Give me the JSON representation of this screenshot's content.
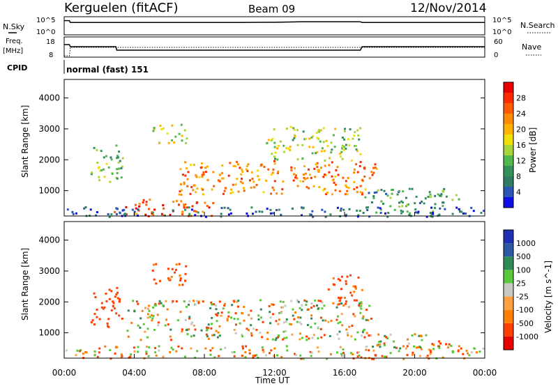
{
  "header": {
    "station": "Kerguelen (fitACF)",
    "beam": "Beam 09",
    "date": "12/Nov/2014"
  },
  "noise_panel": {
    "left_label": "N.Sky",
    "right_label": "N.Search",
    "left_ticks": [
      "10^5",
      "10^0"
    ],
    "right_ticks": [
      "10^5",
      "10^0"
    ]
  },
  "freq_panel": {
    "left_label_1": "Freq.",
    "left_label_2": "[MHz]",
    "right_label": "Nave",
    "left_ticks": [
      "18",
      "8"
    ],
    "right_ticks": [
      "60",
      "0"
    ]
  },
  "cpid_panel": {
    "label": "CPID",
    "text": "normal (fast) 151"
  },
  "axes": {
    "ylabel": "Slant Range [km]",
    "xlabel": "Time UT",
    "y_ticks": [
      "1000",
      "2000",
      "3000",
      "4000"
    ],
    "x_ticks": [
      "00:00",
      "04:00",
      "08:00",
      "12:00",
      "16:00",
      "20:00",
      "00:00"
    ]
  },
  "colors": {
    "power_scale": [
      "#1010e6",
      "#2c55b4",
      "#2f7d64",
      "#34915a",
      "#51b84c",
      "#a8d63a",
      "#f0e00a",
      "#ffb300",
      "#ff8c00",
      "#ff5a00",
      "#ff2a00",
      "#e60000"
    ],
    "velocity_scale": [
      "#e60000",
      "#ff4000",
      "#ff8000",
      "#ffa040",
      "#c8c8c0",
      "#5ac83a",
      "#2e8b57",
      "#2c5aa0",
      "#2030b4"
    ]
  },
  "chart_data": [
    {
      "type": "line",
      "title": "",
      "series": [
        {
          "name": "N.Sky",
          "x": [
            0.0,
            0.3,
            0.35,
            10.0,
            12.0,
            13.5,
            16.9,
            17.0,
            24.0
          ],
          "y": [
            4.6,
            4.6,
            3.95,
            3.95,
            4.0,
            4.2,
            4.2,
            3.95,
            3.95
          ]
        }
      ]
    },
    {
      "type": "line",
      "title": "",
      "series": [
        {
          "name": "Freq",
          "x": [
            0.0,
            0.3,
            0.35,
            2.95,
            3.0,
            16.9,
            17.0,
            24.0
          ],
          "y": [
            16,
            16,
            14.5,
            14.5,
            12,
            12,
            14.5,
            14.5
          ]
        },
        {
          "name": "Nave",
          "x": [
            0.0,
            0.3,
            0.35,
            24.0
          ],
          "y": [
            0,
            0,
            36,
            36
          ]
        }
      ]
    },
    {
      "type": "heatmap",
      "title": "Power [dB]",
      "xlabel": "Time UT",
      "ylabel": "Slant Range [km]",
      "xlim": [
        0,
        24
      ],
      "ylim": [
        180,
        4600
      ],
      "colorbar": {
        "label": "Power [dB]",
        "ticks": [
          "4",
          "8",
          "12",
          "16",
          "20",
          "24",
          "28"
        ],
        "range": [
          0,
          30
        ]
      },
      "regions": [
        {
          "t0": 1.5,
          "t1": 3.3,
          "r0": 1200,
          "r1": 2500,
          "value": 12
        },
        {
          "t0": 2.8,
          "t1": 8.5,
          "r0": 200,
          "r1": 750,
          "value": 24
        },
        {
          "t0": 6.5,
          "t1": 17.8,
          "r0": 900,
          "r1": 2000,
          "value": 22
        },
        {
          "t0": 11.5,
          "t1": 17.0,
          "r0": 2000,
          "r1": 3100,
          "value": 14
        },
        {
          "t0": 5.0,
          "t1": 7.0,
          "r0": 2550,
          "r1": 3200,
          "value": 15
        },
        {
          "t0": 17.0,
          "t1": 22.5,
          "r0": 300,
          "r1": 1100,
          "value": 9
        },
        {
          "t0": 0.0,
          "t1": 24.0,
          "r0": 180,
          "r1": 500,
          "value": 5
        }
      ]
    },
    {
      "type": "heatmap",
      "title": "Velocity [m s^-1]",
      "xlabel": "Time UT",
      "ylabel": "Slant Range [km]",
      "xlim": [
        0,
        24
      ],
      "ylim": [
        180,
        4600
      ],
      "colorbar": {
        "label": "Velocity [m s^-1]",
        "ticks": [
          "1000",
          "500",
          "100",
          "25",
          "-25",
          "-100",
          "-500",
          "-1000"
        ],
        "range": [
          -1000,
          1000
        ]
      },
      "regions": [
        {
          "t0": 1.5,
          "t1": 3.3,
          "r0": 1200,
          "r1": 2500,
          "value": -300
        },
        {
          "t0": 3.5,
          "t1": 17.5,
          "r0": 800,
          "r1": 2100,
          "value": 0
        },
        {
          "t0": 15.0,
          "t1": 17.0,
          "r0": 2000,
          "r1": 2900,
          "value": -200
        },
        {
          "t0": 5.0,
          "t1": 7.0,
          "r0": 2550,
          "r1": 3300,
          "value": -200
        },
        {
          "t0": 17.0,
          "t1": 22.5,
          "r0": 500,
          "r1": 1000,
          "value": 0
        },
        {
          "t0": 0.0,
          "t1": 24.0,
          "r0": 180,
          "r1": 600,
          "value": -50
        }
      ]
    }
  ]
}
